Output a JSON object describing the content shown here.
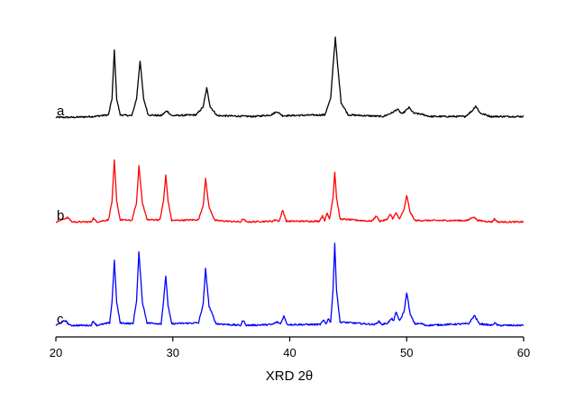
{
  "chart_data": {
    "type": "line",
    "title": "",
    "xlabel": "XRD 2θ",
    "ylabel": "",
    "xlim": [
      20,
      60
    ],
    "xticks": [
      20,
      30,
      40,
      50,
      60
    ],
    "y_axis_visible": false,
    "grid": false,
    "legend": "none",
    "series": [
      {
        "name": "a",
        "color": "#000000",
        "points": [
          [
            20,
            0.02
          ],
          [
            21.5,
            0.02
          ],
          [
            23.2,
            0.03
          ],
          [
            24.5,
            0.05
          ],
          [
            24.8,
            0.25
          ],
          [
            25.0,
            0.85
          ],
          [
            25.2,
            0.25
          ],
          [
            25.5,
            0.05
          ],
          [
            26.5,
            0.04
          ],
          [
            26.9,
            0.25
          ],
          [
            27.2,
            0.72
          ],
          [
            27.5,
            0.25
          ],
          [
            27.9,
            0.05
          ],
          [
            29.0,
            0.04
          ],
          [
            29.5,
            0.1
          ],
          [
            29.9,
            0.04
          ],
          [
            32.0,
            0.05
          ],
          [
            32.6,
            0.15
          ],
          [
            32.9,
            0.38
          ],
          [
            33.2,
            0.15
          ],
          [
            33.8,
            0.04
          ],
          [
            37.0,
            0.03
          ],
          [
            38.4,
            0.05
          ],
          [
            38.9,
            0.09
          ],
          [
            39.4,
            0.04
          ],
          [
            43.0,
            0.05
          ],
          [
            43.5,
            0.25
          ],
          [
            43.7,
            0.65
          ],
          [
            43.9,
            1.0
          ],
          [
            44.1,
            0.65
          ],
          [
            44.4,
            0.2
          ],
          [
            45.0,
            0.05
          ],
          [
            48.0,
            0.03
          ],
          [
            48.8,
            0.08
          ],
          [
            49.2,
            0.12
          ],
          [
            49.6,
            0.06
          ],
          [
            50.2,
            0.14
          ],
          [
            50.6,
            0.07
          ],
          [
            51.2,
            0.06
          ],
          [
            52.0,
            0.03
          ],
          [
            55.0,
            0.03
          ],
          [
            55.6,
            0.1
          ],
          [
            55.9,
            0.16
          ],
          [
            56.3,
            0.07
          ],
          [
            57.2,
            0.03
          ],
          [
            60,
            0.03
          ]
        ]
      },
      {
        "name": "b",
        "color": "#ff0000",
        "points": [
          [
            20,
            0.02
          ],
          [
            21.0,
            0.08
          ],
          [
            21.4,
            0.02
          ],
          [
            23.0,
            0.02
          ],
          [
            23.2,
            0.07
          ],
          [
            23.5,
            0.02
          ],
          [
            24.5,
            0.05
          ],
          [
            24.8,
            0.3
          ],
          [
            25.0,
            0.85
          ],
          [
            25.2,
            0.3
          ],
          [
            25.5,
            0.05
          ],
          [
            26.5,
            0.04
          ],
          [
            26.9,
            0.28
          ],
          [
            27.1,
            0.78
          ],
          [
            27.4,
            0.28
          ],
          [
            27.8,
            0.05
          ],
          [
            28.9,
            0.05
          ],
          [
            29.2,
            0.3
          ],
          [
            29.4,
            0.65
          ],
          [
            29.6,
            0.3
          ],
          [
            29.9,
            0.04
          ],
          [
            32.2,
            0.05
          ],
          [
            32.6,
            0.25
          ],
          [
            32.8,
            0.6
          ],
          [
            33.1,
            0.22
          ],
          [
            33.6,
            0.04
          ],
          [
            35.8,
            0.02
          ],
          [
            36.0,
            0.06
          ],
          [
            36.3,
            0.02
          ],
          [
            38.5,
            0.03
          ],
          [
            38.8,
            0.05
          ],
          [
            39.1,
            0.03
          ],
          [
            39.4,
            0.18
          ],
          [
            39.7,
            0.03
          ],
          [
            42.5,
            0.03
          ],
          [
            42.8,
            0.1
          ],
          [
            43.0,
            0.04
          ],
          [
            43.2,
            0.14
          ],
          [
            43.4,
            0.06
          ],
          [
            43.7,
            0.35
          ],
          [
            43.85,
            0.7
          ],
          [
            44.0,
            0.35
          ],
          [
            44.3,
            0.06
          ],
          [
            47.0,
            0.03
          ],
          [
            47.4,
            0.1
          ],
          [
            47.7,
            0.03
          ],
          [
            48.3,
            0.05
          ],
          [
            48.6,
            0.13
          ],
          [
            48.8,
            0.06
          ],
          [
            49.1,
            0.14
          ],
          [
            49.4,
            0.06
          ],
          [
            49.8,
            0.2
          ],
          [
            50.0,
            0.38
          ],
          [
            50.3,
            0.15
          ],
          [
            50.7,
            0.04
          ],
          [
            55.2,
            0.04
          ],
          [
            55.7,
            0.09
          ],
          [
            56.1,
            0.04
          ],
          [
            57.3,
            0.02
          ],
          [
            57.5,
            0.06
          ],
          [
            57.8,
            0.02
          ],
          [
            60,
            0.02
          ]
        ]
      },
      {
        "name": "c",
        "color": "#0000ff",
        "points": [
          [
            20,
            0.02
          ],
          [
            20.8,
            0.08
          ],
          [
            21.2,
            0.02
          ],
          [
            23.0,
            0.02
          ],
          [
            23.2,
            0.07
          ],
          [
            23.5,
            0.02
          ],
          [
            24.6,
            0.05
          ],
          [
            24.8,
            0.3
          ],
          [
            25.0,
            0.8
          ],
          [
            25.2,
            0.3
          ],
          [
            25.5,
            0.05
          ],
          [
            26.6,
            0.04
          ],
          [
            26.9,
            0.32
          ],
          [
            27.1,
            0.9
          ],
          [
            27.4,
            0.3
          ],
          [
            27.8,
            0.05
          ],
          [
            29.0,
            0.04
          ],
          [
            29.2,
            0.3
          ],
          [
            29.4,
            0.62
          ],
          [
            29.6,
            0.25
          ],
          [
            29.9,
            0.04
          ],
          [
            32.2,
            0.05
          ],
          [
            32.6,
            0.28
          ],
          [
            32.8,
            0.7
          ],
          [
            33.1,
            0.25
          ],
          [
            33.7,
            0.04
          ],
          [
            35.8,
            0.02
          ],
          [
            36.0,
            0.08
          ],
          [
            36.3,
            0.02
          ],
          [
            38.5,
            0.03
          ],
          [
            38.9,
            0.06
          ],
          [
            39.2,
            0.04
          ],
          [
            39.5,
            0.13
          ],
          [
            39.8,
            0.03
          ],
          [
            42.6,
            0.03
          ],
          [
            42.9,
            0.08
          ],
          [
            43.1,
            0.04
          ],
          [
            43.3,
            0.1
          ],
          [
            43.5,
            0.06
          ],
          [
            43.7,
            0.45
          ],
          [
            43.85,
            1.0
          ],
          [
            44.0,
            0.45
          ],
          [
            44.3,
            0.06
          ],
          [
            47.3,
            0.03
          ],
          [
            47.6,
            0.07
          ],
          [
            47.9,
            0.03
          ],
          [
            48.4,
            0.05
          ],
          [
            48.7,
            0.1
          ],
          [
            48.9,
            0.08
          ],
          [
            49.1,
            0.18
          ],
          [
            49.4,
            0.07
          ],
          [
            49.8,
            0.2
          ],
          [
            50.0,
            0.42
          ],
          [
            50.3,
            0.15
          ],
          [
            50.7,
            0.04
          ],
          [
            51.3,
            0.04
          ],
          [
            51.6,
            0.02
          ],
          [
            55.3,
            0.04
          ],
          [
            55.8,
            0.14
          ],
          [
            56.2,
            0.04
          ],
          [
            57.3,
            0.02
          ],
          [
            57.5,
            0.05
          ],
          [
            57.8,
            0.02
          ],
          [
            60,
            0.02
          ]
        ]
      }
    ]
  }
}
